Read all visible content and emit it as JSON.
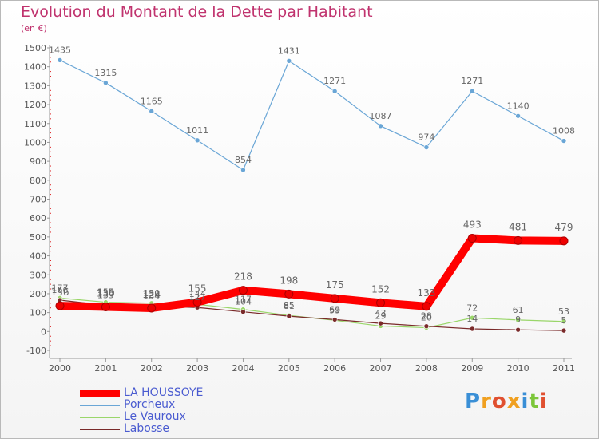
{
  "header": {
    "title": "Evolution du Montant de la Dette par Habitant",
    "unit": "(en €)"
  },
  "logo": {
    "text": "Proxiti",
    "colors": [
      "#3a8fd6",
      "#f0a020",
      "#e05030",
      "#f0a020",
      "#3a8fd6",
      "#7cc63a",
      "#e05030"
    ]
  },
  "chart_data": {
    "type": "line",
    "title": "Evolution du Montant de la Dette par Habitant",
    "ylabel": "(en €)",
    "xlabel": "",
    "x": [
      "2000",
      "2001",
      "2002",
      "2003",
      "2004",
      "2005",
      "2006",
      "2007",
      "2008",
      "2009",
      "2010",
      "2011"
    ],
    "ylim": [
      -100,
      1500
    ],
    "yticks": [
      -100,
      0,
      100,
      200,
      300,
      400,
      500,
      600,
      700,
      800,
      900,
      1000,
      1100,
      1200,
      1300,
      1400,
      1500
    ],
    "grid": false,
    "legend_position": "bottom-left",
    "series": [
      {
        "name": "LA HOUSSOYE",
        "color": "#ff0000",
        "emphasis": true,
        "values": [
          136,
          130,
          124,
          155,
          218,
          198,
          175,
          152,
          133,
          493,
          481,
          479
        ]
      },
      {
        "name": "Porcheux",
        "color": "#6aa6d6",
        "values": [
          1435,
          1315,
          1165,
          1011,
          854,
          1431,
          1271,
          1087,
          974,
          1271,
          1140,
          1008
        ]
      },
      {
        "name": "Le Vauroux",
        "color": "#9ad66a",
        "values": [
          177,
          155,
          150,
          144,
          117,
          85,
          59,
          29,
          20,
          72,
          61,
          53
        ]
      },
      {
        "name": "Labosse",
        "color": "#7a2a2a",
        "values": [
          166,
          139,
          134,
          127,
          104,
          81,
          63,
          43,
          28,
          14,
          9,
          5
        ]
      }
    ]
  }
}
